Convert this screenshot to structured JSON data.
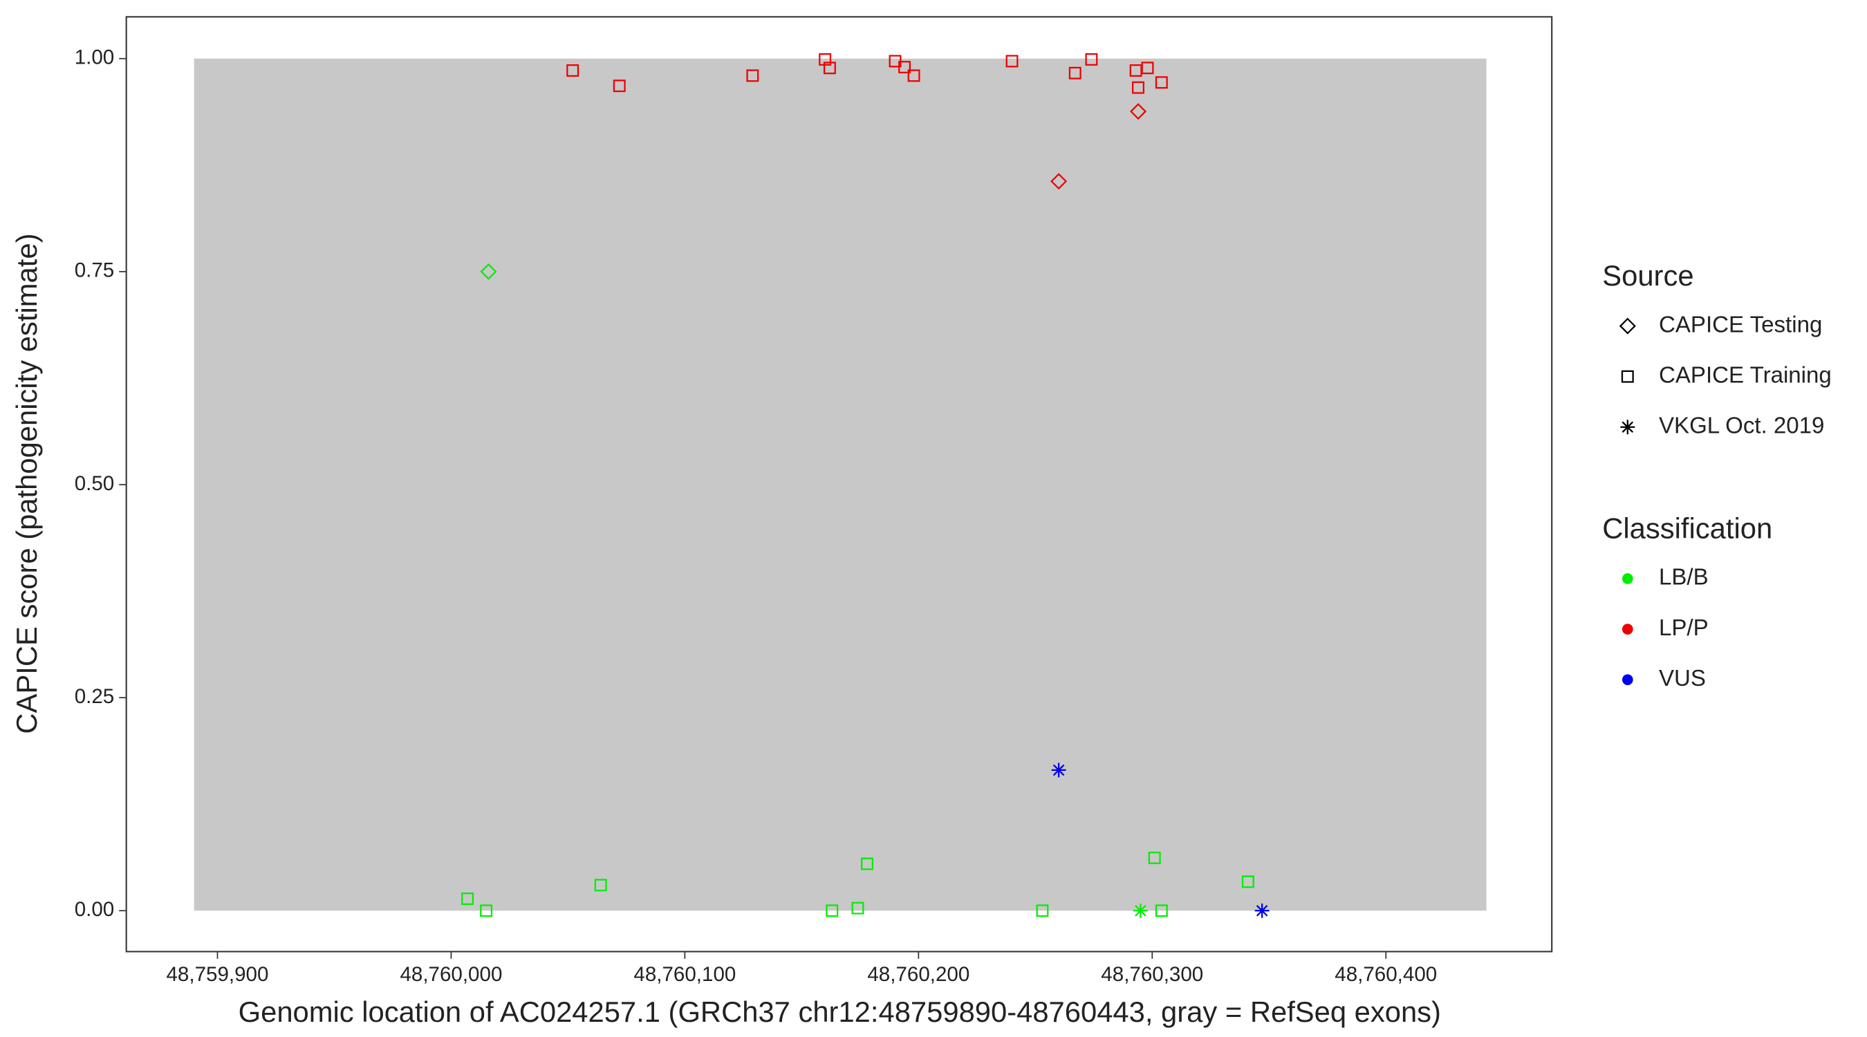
{
  "chart_data": {
    "type": "scatter",
    "x_label": "Genomic location of AC024257.1 (GRCh37 chr12:48759890-48760443, gray = RefSeq exons)",
    "y_label": "CAPICE score (pathogenicity estimate)",
    "xlim": [
      48759861,
      48760471
    ],
    "ylim": [
      -0.048,
      1.049
    ],
    "xticks": [
      {
        "value": 48759900,
        "label": "48,759,900"
      },
      {
        "value": 48760000,
        "label": "48,760,000"
      },
      {
        "value": 48760100,
        "label": "48,760,100"
      },
      {
        "value": 48760200,
        "label": "48,760,200"
      },
      {
        "value": 48760300,
        "label": "48,760,300"
      },
      {
        "value": 48760400,
        "label": "48,760,400"
      }
    ],
    "yticks": [
      {
        "value": 0,
        "label": "0.00"
      },
      {
        "value": 0.25,
        "label": "0.25"
      },
      {
        "value": 0.5,
        "label": "0.50"
      },
      {
        "value": 0.75,
        "label": "0.75"
      },
      {
        "value": 1,
        "label": "1.00"
      }
    ],
    "exons": [
      {
        "start": 48759890,
        "end": 48760443,
        "ymin": 0,
        "ymax": 1,
        "color": "#c8c8c8"
      }
    ],
    "legend_source_title": "Source",
    "sources": [
      {
        "name": "CAPICE Testing",
        "shape": "diamond"
      },
      {
        "name": "CAPICE Training",
        "shape": "square"
      },
      {
        "name": "VKGL Oct. 2019",
        "shape": "star"
      }
    ],
    "legend_class_title": "Classification",
    "classifications": [
      {
        "name": "LB/B",
        "color": "#00ee00"
      },
      {
        "name": "LP/P",
        "color": "#ee0000"
      },
      {
        "name": "VUS",
        "color": "#0000ee"
      }
    ],
    "series": [
      {
        "shape": "square",
        "color": "#ee0000",
        "x": [
          48760052,
          48760072,
          48760129,
          48760160,
          48760162,
          48760190,
          48760194,
          48760198,
          48760240,
          48760267,
          48760274,
          48760293,
          48760298,
          48760294,
          48760304
        ],
        "values": [
          0.986,
          0.968,
          0.98,
          0.999,
          0.989,
          0.997,
          0.99,
          0.98,
          0.997,
          0.983,
          0.999,
          0.986,
          0.989,
          0.966,
          0.972
        ]
      },
      {
        "shape": "diamond",
        "color": "#ee0000",
        "x": [
          48760294,
          48760260
        ],
        "values": [
          0.938,
          0.856
        ]
      },
      {
        "shape": "diamond",
        "color": "#00ee00",
        "x": [
          48760016
        ],
        "values": [
          0.75
        ]
      },
      {
        "shape": "square",
        "color": "#00ee00",
        "x": [
          48760007,
          48760015,
          48760064,
          48760163,
          48760174,
          48760178,
          48760253,
          48760301,
          48760304,
          48760341
        ],
        "values": [
          0.014,
          0,
          0.03,
          0,
          0.003,
          0.055,
          0,
          0.062,
          0,
          0.034
        ]
      },
      {
        "shape": "star",
        "color": "#00ee00",
        "x": [
          48760295
        ],
        "values": [
          0
        ]
      },
      {
        "shape": "star",
        "color": "#0000ee",
        "x": [
          48760260,
          48760347
        ],
        "values": [
          0.165,
          0
        ]
      }
    ]
  }
}
